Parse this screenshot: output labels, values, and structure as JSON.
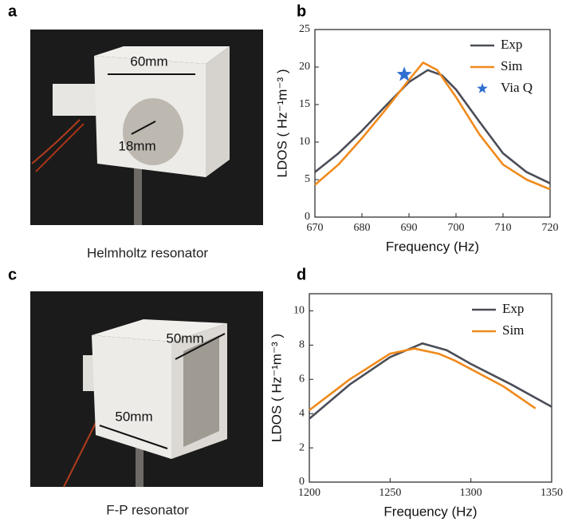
{
  "panels": [
    {
      "label": "a",
      "annotations": [
        "60mm",
        "18mm"
      ],
      "caption": "Helmholtz resonator"
    },
    {
      "label": "b"
    },
    {
      "label": "c",
      "annotations": [
        "50mm",
        "50mm"
      ],
      "caption": "F-P resonator"
    },
    {
      "label": "d"
    }
  ],
  "chart_data": [
    {
      "type": "line",
      "xlabel": "Frequency (Hz)",
      "ylabel": "LDOS ( Hz⁻¹m⁻³ )",
      "xlim": [
        670,
        720
      ],
      "xticks": [
        670,
        680,
        690,
        700,
        710,
        720
      ],
      "ylim": [
        0,
        25
      ],
      "yticks": [
        0,
        5,
        10,
        15,
        20,
        25
      ],
      "legend": "upper right",
      "series": [
        {
          "name": "Exp",
          "color": "#4a4d57",
          "x": [
            670,
            675,
            680,
            685,
            690,
            694,
            697,
            700,
            705,
            710,
            715,
            720
          ],
          "values": [
            6,
            8.5,
            11.5,
            14.8,
            18,
            19.6,
            18.9,
            17,
            12.7,
            8.5,
            6,
            4.5
          ]
        },
        {
          "name": "Sim",
          "color": "#f08a1c",
          "x": [
            670,
            675,
            680,
            685,
            690,
            693,
            696,
            700,
            705,
            710,
            715,
            720
          ],
          "values": [
            4.3,
            7,
            10.5,
            14.3,
            18.3,
            20.6,
            19.6,
            16,
            11,
            7,
            5,
            3.7
          ]
        },
        {
          "name": "Via Q",
          "color": "#2f6fd0",
          "marker": "star",
          "x": [
            689
          ],
          "values": [
            19
          ]
        }
      ]
    },
    {
      "type": "line",
      "xlabel": "Frequency (Hz)",
      "ylabel": "LDOS ( Hz⁻¹m⁻³ )",
      "xlim": [
        1200,
        1350
      ],
      "xticks": [
        1200,
        1250,
        1300,
        1350
      ],
      "ylim": [
        0,
        11
      ],
      "yticks": [
        0,
        2,
        4,
        6,
        8,
        10
      ],
      "legend": "upper right",
      "series": [
        {
          "name": "Exp",
          "color": "#4a4d57",
          "x": [
            1200,
            1225,
            1250,
            1270,
            1285,
            1300,
            1325,
            1350
          ],
          "values": [
            3.7,
            5.7,
            7.3,
            8.1,
            7.7,
            6.9,
            5.7,
            4.4
          ]
        },
        {
          "name": "Sim",
          "color": "#f08a1c",
          "x": [
            1200,
            1225,
            1250,
            1265,
            1280,
            1290,
            1320,
            1340
          ],
          "values": [
            4.2,
            6,
            7.5,
            7.8,
            7.5,
            7.1,
            5.6,
            4.3
          ]
        }
      ]
    }
  ]
}
